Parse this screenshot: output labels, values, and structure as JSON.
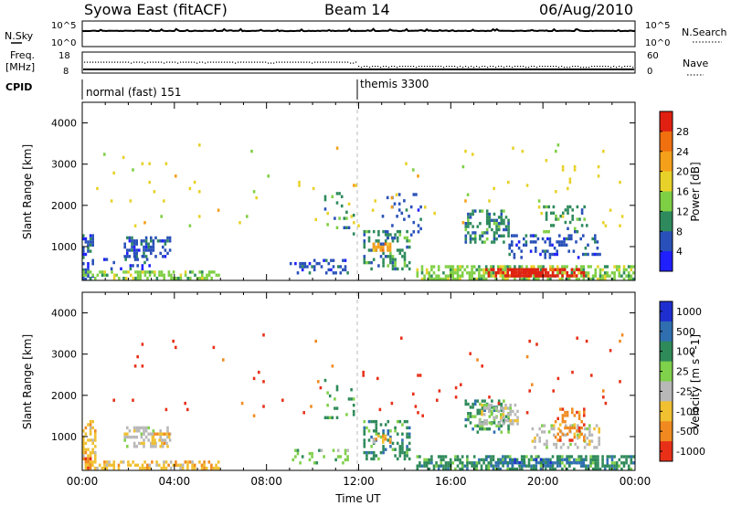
{
  "header": {
    "title": "Syowa East (fitACF)",
    "beam": "Beam 14",
    "date": "06/Aug/2010"
  },
  "side_labels": {
    "nsky": "N.Sky",
    "nsearch": "N.Search",
    "freq_line1": "Freq.",
    "freq_line2": "[MHz]",
    "nave": "Nave",
    "cpid": "CPID"
  },
  "noise_axis": {
    "top": "10^5",
    "bottom": "10^0"
  },
  "freq_axis": {
    "left_top": "18",
    "left_bottom": "8",
    "right_top": "60",
    "right_bottom": "0"
  },
  "cpid_labels": [
    {
      "time_h": 0.05,
      "text": "normal (fast) 151"
    },
    {
      "time_h": 12.0,
      "text": "themis 3300"
    }
  ],
  "chart_data": [
    {
      "type": "heatmap",
      "title": "",
      "xlabel": "",
      "ylabel": "Slant Range [km]",
      "x_range_hours": [
        0,
        24
      ],
      "ylim": [
        180,
        4500
      ],
      "y_ticks": [
        1000,
        2000,
        3000,
        4000
      ],
      "colorbar": {
        "label": "Power [dB]",
        "ticks": [
          "4",
          "8",
          "12",
          "16",
          "20",
          "24",
          "28"
        ],
        "colors": [
          "#1f1fff",
          "#2850b8",
          "#2e8a5c",
          "#7fcf45",
          "#e8d22a",
          "#f5a01a",
          "#f07010",
          "#e02010"
        ],
        "range": [
          0,
          30
        ]
      },
      "regions": [
        {
          "t0": 0.0,
          "t1": 0.5,
          "r0": 200,
          "r1": 1300,
          "level": 1,
          "density": 0.55
        },
        {
          "t0": 0.0,
          "t1": 6.0,
          "r0": 200,
          "r1": 420,
          "level": 3,
          "density": 0.5
        },
        {
          "t0": 1.8,
          "t1": 3.9,
          "r0": 750,
          "r1": 1250,
          "level": 1,
          "density": 0.45
        },
        {
          "t0": 0.5,
          "t1": 3.0,
          "r0": 450,
          "r1": 800,
          "level": 1,
          "density": 0.15
        },
        {
          "t0": 9.0,
          "t1": 11.6,
          "r0": 350,
          "r1": 700,
          "level": 1,
          "density": 0.3
        },
        {
          "t0": 10.5,
          "t1": 11.8,
          "r0": 1300,
          "r1": 2400,
          "level": 2,
          "density": 0.12
        },
        {
          "t0": 12.2,
          "t1": 14.3,
          "r0": 400,
          "r1": 1400,
          "level": 2,
          "density": 0.35
        },
        {
          "t0": 12.6,
          "t1": 13.4,
          "r0": 900,
          "r1": 1100,
          "level": 5,
          "density": 0.6
        },
        {
          "t0": 13.0,
          "t1": 14.8,
          "r0": 1200,
          "r1": 2300,
          "level": 1,
          "density": 0.12
        },
        {
          "t0": 14.5,
          "t1": 24.0,
          "r0": 200,
          "r1": 550,
          "level": 3,
          "density": 0.6
        },
        {
          "t0": 17.5,
          "t1": 21.8,
          "r0": 250,
          "r1": 480,
          "level": 7,
          "density": 0.6
        },
        {
          "t0": 18.6,
          "t1": 20.0,
          "r0": 250,
          "r1": 480,
          "level": 8,
          "density": 0.8
        },
        {
          "t0": 16.6,
          "t1": 18.6,
          "r0": 1100,
          "r1": 1900,
          "level": 2,
          "density": 0.45
        },
        {
          "t0": 18.5,
          "t1": 22.5,
          "r0": 700,
          "r1": 1300,
          "level": 1,
          "density": 0.25
        },
        {
          "t0": 20.0,
          "t1": 22.0,
          "r0": 1300,
          "r1": 2000,
          "level": 2,
          "density": 0.2
        },
        {
          "t0": 0.5,
          "t1": 23.5,
          "r0": 1500,
          "r1": 3500,
          "level": 4,
          "density": 0.012
        }
      ]
    },
    {
      "type": "heatmap",
      "title": "",
      "xlabel": "Time UT",
      "ylabel": "Slant Range [km]",
      "x_range_hours": [
        0,
        24
      ],
      "x_ticks": [
        "00:00",
        "04:00",
        "08:00",
        "12:00",
        "16:00",
        "20:00",
        "00:00"
      ],
      "ylim": [
        180,
        4500
      ],
      "y_ticks": [
        1000,
        2000,
        3000,
        4000
      ],
      "colorbar": {
        "label": "Velocity [m s^-1]",
        "ticks": [
          "1000",
          "500",
          "100",
          "25",
          "-25",
          "-100",
          "-500",
          "-1000"
        ],
        "colors": [
          "#1f2fcf",
          "#2f6fb0",
          "#2f8a5a",
          "#7fd04a",
          "#b8b8b8",
          "#f0c030",
          "#f08a20",
          "#e83018"
        ],
        "range": [
          -1000,
          1000
        ]
      },
      "regions": [
        {
          "t0": 0.0,
          "t1": 0.6,
          "r0": 200,
          "r1": 1400,
          "level": 5,
          "density": 0.45
        },
        {
          "t0": 0.0,
          "t1": 0.4,
          "r0": 200,
          "r1": 500,
          "level": 6,
          "density": 0.7
        },
        {
          "t0": 0.4,
          "t1": 6.0,
          "r0": 200,
          "r1": 420,
          "level": 5,
          "density": 0.5
        },
        {
          "t0": 1.8,
          "t1": 3.9,
          "r0": 750,
          "r1": 1250,
          "level": 4,
          "density": 0.45
        },
        {
          "t0": 3.0,
          "t1": 3.8,
          "r0": 800,
          "r1": 1100,
          "level": 5,
          "density": 0.5
        },
        {
          "t0": 9.0,
          "t1": 11.6,
          "r0": 350,
          "r1": 700,
          "level": 3,
          "density": 0.3
        },
        {
          "t0": 10.5,
          "t1": 11.8,
          "r0": 1300,
          "r1": 2400,
          "level": 2,
          "density": 0.12
        },
        {
          "t0": 12.2,
          "t1": 14.3,
          "r0": 400,
          "r1": 1400,
          "level": 2,
          "density": 0.35
        },
        {
          "t0": 12.6,
          "t1": 13.4,
          "r0": 850,
          "r1": 1050,
          "level": 5,
          "density": 0.5
        },
        {
          "t0": 14.5,
          "t1": 24.0,
          "r0": 200,
          "r1": 550,
          "level": 2,
          "density": 0.6
        },
        {
          "t0": 17.5,
          "t1": 21.8,
          "r0": 250,
          "r1": 480,
          "level": 1,
          "density": 0.5
        },
        {
          "t0": 16.6,
          "t1": 18.6,
          "r0": 1100,
          "r1": 1900,
          "level": 2,
          "density": 0.35
        },
        {
          "t0": 17.2,
          "t1": 19.0,
          "r0": 1300,
          "r1": 1800,
          "level": 4,
          "density": 0.5
        },
        {
          "t0": 19.5,
          "t1": 22.5,
          "r0": 700,
          "r1": 1300,
          "level": 4,
          "density": 0.25
        },
        {
          "t0": 20.5,
          "t1": 21.8,
          "r0": 900,
          "r1": 1700,
          "level": 6,
          "density": 0.35
        },
        {
          "t0": 0.5,
          "t1": 23.5,
          "r0": 1500,
          "r1": 3500,
          "level": 7,
          "density": 0.012
        }
      ]
    }
  ]
}
